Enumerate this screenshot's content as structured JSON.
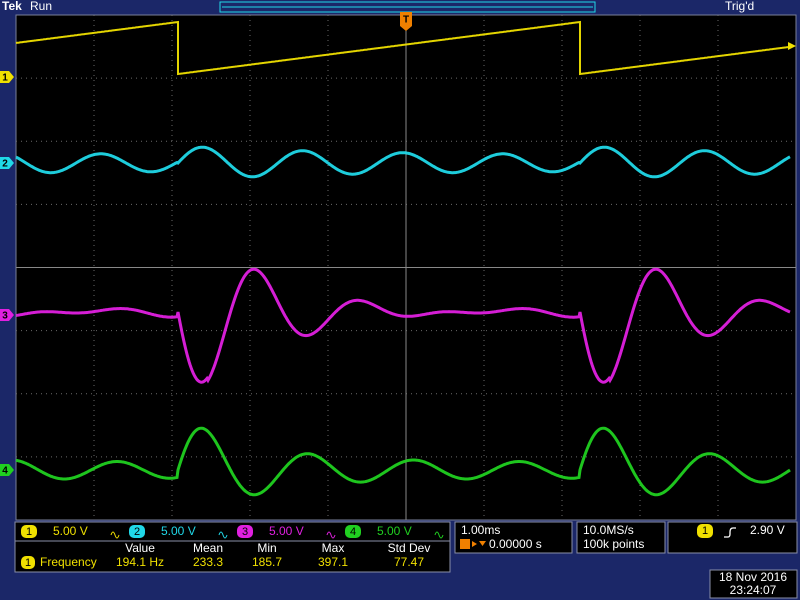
{
  "header": {
    "brand": "Tek",
    "status": "Run",
    "trigger_state": "Trig'd",
    "trigger_marker": "T"
  },
  "channels": [
    {
      "number": "1",
      "scale": "5.00 V",
      "color": "#f0e000"
    },
    {
      "number": "2",
      "scale": "5.00 V",
      "color": "#20d8e8"
    },
    {
      "number": "3",
      "scale": "5.00 V",
      "color": "#e020e0"
    },
    {
      "number": "4",
      "scale": "5.00 V",
      "color": "#20d020"
    }
  ],
  "measurement": {
    "columns": [
      "Value",
      "Mean",
      "Min",
      "Max",
      "Std Dev"
    ],
    "channel": "1",
    "name": "Frequency",
    "value": "194.1 Hz",
    "mean": 233.3,
    "min": 185.7,
    "max": 397.1,
    "std_dev": 77.47
  },
  "timebase": {
    "scale": "1.00ms",
    "position": "0.00000 s"
  },
  "acquisition": {
    "rate": "10.0MS/s",
    "record": "100k points"
  },
  "trigger": {
    "channel": "1",
    "level": "2.90 V"
  },
  "timestamp": {
    "date": "18 Nov 2016",
    "time": "23:24:07"
  }
}
